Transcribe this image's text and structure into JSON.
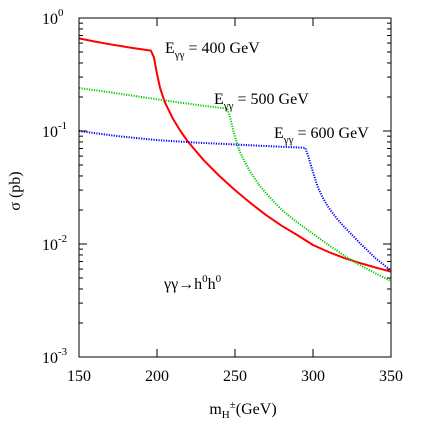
{
  "chart_data": {
    "type": "line",
    "title": "",
    "xlabel": "m",
    "xlabel_sub": "H",
    "xlabel_sup": "±",
    "xlabel_tail": "(GeV)",
    "ylabel": "σ (pb)",
    "xlim": [
      150,
      350
    ],
    "ylim": [
      0.001,
      1
    ],
    "yscale": "log",
    "grid": false,
    "x_ticks": [
      "150",
      "200",
      "250",
      "300",
      "350"
    ],
    "x_tick_values": [
      150,
      200,
      250,
      300,
      350
    ],
    "y_ticks": [
      {
        "value": 1,
        "base": "10",
        "exp": "0"
      },
      {
        "value": 0.1,
        "base": "10",
        "exp": "-1"
      },
      {
        "value": 0.01,
        "base": "10",
        "exp": "-2"
      },
      {
        "value": 0.001,
        "base": "10",
        "exp": "-3"
      }
    ],
    "annotation": {
      "text": "γγ→h",
      "sup1": "0",
      "mid": "h",
      "sup2": "0"
    },
    "series": [
      {
        "name": "E = 400 GeV",
        "label": {
          "e": "E",
          "sub": "γγ",
          "rest": " = 400 GeV"
        },
        "color": "#ff0000",
        "style": "solid",
        "x": [
          150,
          160,
          170,
          180,
          190,
          196,
          198,
          200,
          202,
          205,
          210,
          215,
          220,
          230,
          240,
          250,
          260,
          270,
          280,
          290,
          300,
          310,
          320,
          330,
          340,
          350
        ],
        "y": [
          0.66,
          0.62,
          0.585,
          0.555,
          0.53,
          0.515,
          0.45,
          0.32,
          0.24,
          0.18,
          0.13,
          0.1,
          0.08,
          0.055,
          0.04,
          0.03,
          0.023,
          0.018,
          0.0145,
          0.012,
          0.0098,
          0.0085,
          0.0075,
          0.0068,
          0.0062,
          0.0057
        ]
      },
      {
        "name": "E = 500 GeV",
        "label": {
          "e": "E",
          "sub": "γγ",
          "rest": " = 500 GeV"
        },
        "color": "#00cc00",
        "style": "dotted",
        "x": [
          150,
          170,
          190,
          210,
          230,
          245,
          247,
          249,
          251,
          253,
          256,
          260,
          265,
          270,
          280,
          290,
          300,
          310,
          320,
          330,
          340,
          350
        ],
        "y": [
          0.24,
          0.22,
          0.2,
          0.182,
          0.167,
          0.158,
          0.13,
          0.1,
          0.08,
          0.066,
          0.054,
          0.043,
          0.034,
          0.028,
          0.02,
          0.0155,
          0.0123,
          0.0098,
          0.0079,
          0.0065,
          0.0055,
          0.0047
        ]
      },
      {
        "name": "E = 600 GeV",
        "label": {
          "e": "E",
          "sub": "γγ",
          "rest": " = 600 GeV"
        },
        "color": "#0000ff",
        "style": "dotted",
        "x": [
          150,
          175,
          200,
          225,
          250,
          275,
          295,
          297,
          299,
          301,
          303,
          306,
          310,
          315,
          320,
          330,
          340,
          350
        ],
        "y": [
          0.1,
          0.09,
          0.083,
          0.079,
          0.076,
          0.073,
          0.071,
          0.06,
          0.048,
          0.039,
          0.032,
          0.026,
          0.021,
          0.017,
          0.0142,
          0.0102,
          0.0075,
          0.0058
        ]
      }
    ]
  }
}
